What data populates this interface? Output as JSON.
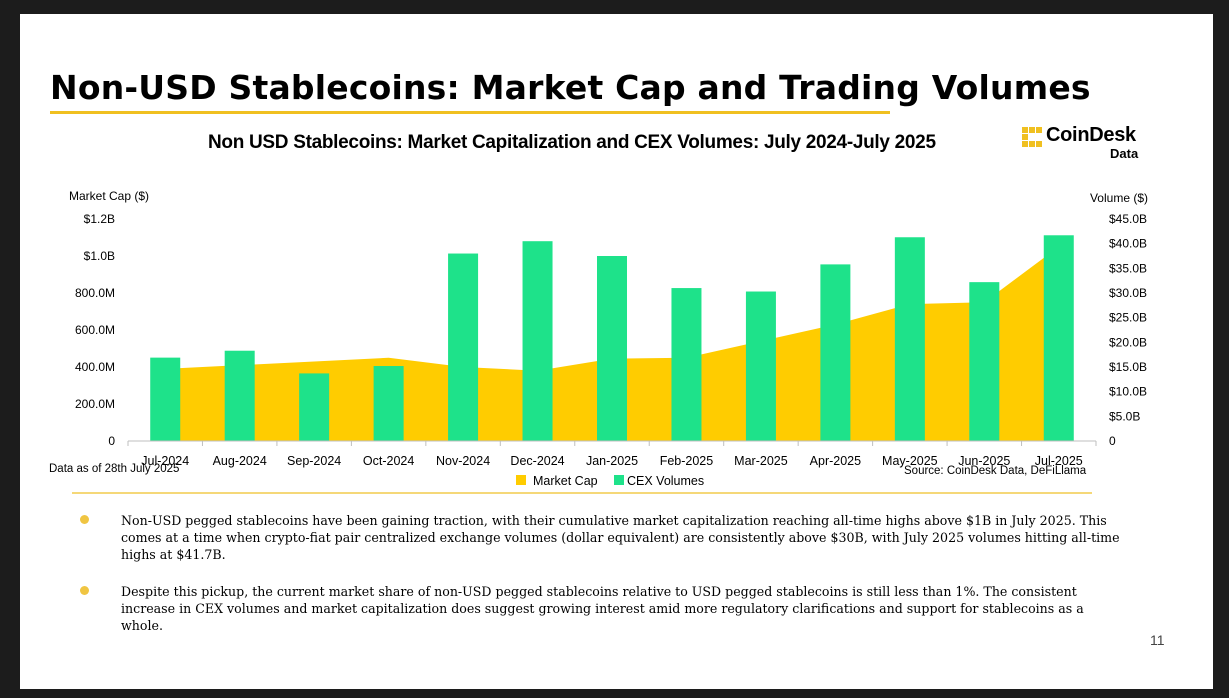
{
  "slide": {
    "title": "Non-USD Stablecoins: Market Cap and Trading Volumes",
    "page_number": "11",
    "footnote": "Data as of 28th July 2025",
    "source": "Source: CoinDesk Data, DeFiLlama",
    "accent_color": "#f0c020",
    "bullets": [
      "Non-USD pegged stablecoins have been gaining traction, with their cumulative market capitalization reaching all-time highs above $1B in July 2025. This comes at a time when crypto-fiat pair centralized exchange volumes (dollar equivalent) are consistently above $30B, with July 2025 volumes hitting all-time highs at $41.7B.",
      "Despite this pickup, the current market share of non-USD pegged stablecoins relative to USD pegged stablecoins is still less than 1%. The consistent increase in CEX volumes and market capitalization does suggest growing interest amid more regulatory clarifications and support for stablecoins as a whole."
    ]
  },
  "brand": {
    "name": "CoinDesk",
    "sub": "Data",
    "icon": "coindesk-logo-icon"
  },
  "chart_data": {
    "type": "bar",
    "title": "Non USD Stablecoins: Market Capitalization and CEX Volumes: July 2024-July 2025",
    "categories": [
      "Jul-2024",
      "Aug-2024",
      "Sep-2024",
      "Oct-2024",
      "Nov-2024",
      "Dec-2024",
      "Jan-2025",
      "Feb-2025",
      "Mar-2025",
      "Apr-2025",
      "May-2025",
      "Jun-2025",
      "Jul-2025"
    ],
    "ylabel_left": "Market Cap ($)",
    "ylabel_right": "Volume ($)",
    "ylim_left": [
      0,
      1200000000
    ],
    "ylim_right": [
      0,
      45000000000
    ],
    "yticks_left": [
      "0",
      "200.0M",
      "400.0M",
      "600.0M",
      "800.0M",
      "$1.0B",
      "$1.2B"
    ],
    "yticks_right": [
      "0",
      "$5.0B",
      "$10.0B",
      "$15.0B",
      "$20.0B",
      "$25.0B",
      "$30.0B",
      "$35.0B",
      "$40.0B",
      "$45.0B"
    ],
    "grid": false,
    "legend_position": "bottom",
    "series": [
      {
        "name": "Market Cap",
        "type": "area",
        "axis": "left",
        "color": "#ffcc00",
        "values": [
          390000000,
          410000000,
          430000000,
          450000000,
          400000000,
          380000000,
          445000000,
          450000000,
          540000000,
          630000000,
          740000000,
          750000000,
          1050000000
        ]
      },
      {
        "name": "CEX Volumes",
        "type": "bar",
        "axis": "right",
        "color": "#1ee28a",
        "values": [
          16900000000,
          18300000000,
          13700000000,
          15200000000,
          38000000000,
          40500000000,
          37500000000,
          31000000000,
          30300000000,
          35800000000,
          41300000000,
          32200000000,
          41700000000
        ]
      }
    ]
  }
}
